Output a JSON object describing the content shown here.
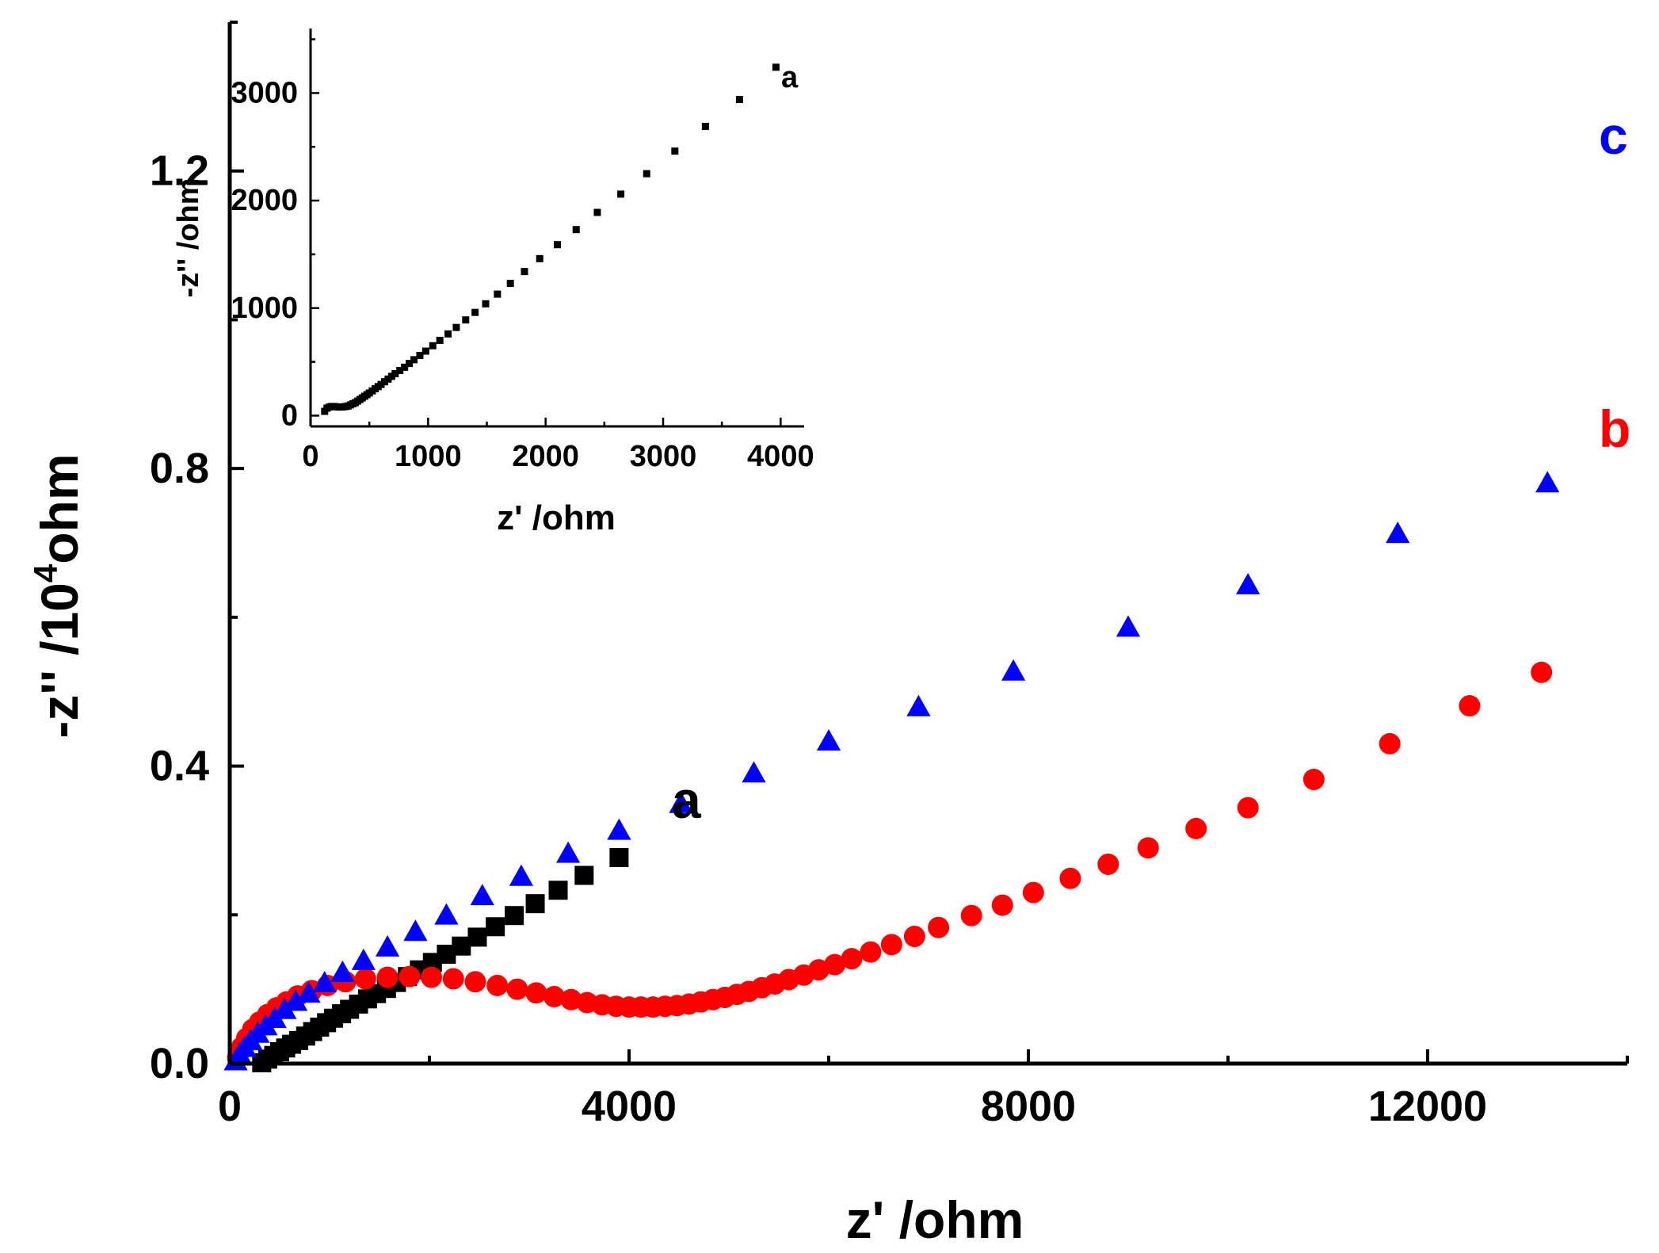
{
  "chart_data": [
    {
      "type": "scatter",
      "name": "main",
      "xlabel": "z' /ohm",
      "ylabel": "-z'' /10^4ohm",
      "ylabel_parts": {
        "prefix": "-z'' /10",
        "sup": "4",
        "suffix": "ohm"
      },
      "xlim": [
        0,
        14000
      ],
      "ylim": [
        0,
        1.4
      ],
      "xticks": [
        0,
        4000,
        8000,
        12000
      ],
      "yticks": [
        0.0,
        0.4,
        0.8,
        1.2
      ],
      "xtick_labels": [
        "0",
        "4000",
        "8000",
        "12000"
      ],
      "ytick_labels": [
        "0.0",
        "0.4",
        "0.8",
        "1.2"
      ],
      "series": [
        {
          "name": "a",
          "marker": "square",
          "color": "#000000",
          "x": [
            320,
            380,
            440,
            500,
            560,
            620,
            690,
            760,
            830,
            900,
            970,
            1040,
            1120,
            1200,
            1290,
            1380,
            1470,
            1570,
            1670,
            1780,
            1900,
            2030,
            2170,
            2320,
            2480,
            2660,
            2850,
            3060,
            3290,
            3550,
            3900
          ],
          "y": [
            0.001,
            0.006,
            0.011,
            0.016,
            0.021,
            0.026,
            0.031,
            0.037,
            0.043,
            0.049,
            0.055,
            0.061,
            0.067,
            0.073,
            0.08,
            0.087,
            0.094,
            0.101,
            0.109,
            0.117,
            0.126,
            0.136,
            0.147,
            0.158,
            0.17,
            0.184,
            0.199,
            0.215,
            0.233,
            0.253,
            0.277
          ]
        },
        {
          "name": "b",
          "marker": "circle",
          "color": "#ff0000",
          "x": [
            80,
            120,
            170,
            230,
            300,
            380,
            470,
            570,
            680,
            820,
            980,
            1160,
            1360,
            1580,
            1800,
            2020,
            2240,
            2460,
            2680,
            2880,
            3070,
            3250,
            3420,
            3580,
            3730,
            3870,
            4000,
            4120,
            4240,
            4360,
            4480,
            4600,
            4720,
            4840,
            4960,
            5080,
            5200,
            5330,
            5460,
            5600,
            5750,
            5900,
            6060,
            6230,
            6420,
            6630,
            6860,
            7100,
            7430,
            7740,
            8050,
            8420,
            8800,
            9200,
            9680,
            10200,
            10860,
            11620,
            12420,
            13140
          ],
          "y": [
            0.008,
            0.022,
            0.034,
            0.046,
            0.056,
            0.066,
            0.075,
            0.083,
            0.091,
            0.098,
            0.105,
            0.11,
            0.114,
            0.116,
            0.117,
            0.116,
            0.114,
            0.11,
            0.105,
            0.1,
            0.095,
            0.09,
            0.086,
            0.082,
            0.079,
            0.077,
            0.076,
            0.076,
            0.076,
            0.077,
            0.078,
            0.08,
            0.083,
            0.086,
            0.089,
            0.093,
            0.097,
            0.102,
            0.107,
            0.113,
            0.119,
            0.126,
            0.133,
            0.141,
            0.15,
            0.16,
            0.171,
            0.183,
            0.199,
            0.213,
            0.23,
            0.249,
            0.268,
            0.29,
            0.316,
            0.344,
            0.382,
            0.43,
            0.481,
            0.526
          ]
        },
        {
          "name": "c",
          "marker": "triangle",
          "color": "#0000ff",
          "x": [
            60,
            100,
            150,
            210,
            280,
            360,
            450,
            550,
            660,
            790,
            950,
            1130,
            1340,
            1580,
            1860,
            2170,
            2530,
            2920,
            3390,
            3900,
            4520,
            5250,
            6000,
            6900,
            7850,
            9000,
            10200,
            11700,
            13200
          ],
          "y": [
            0.003,
            0.012,
            0.021,
            0.03,
            0.04,
            0.05,
            0.06,
            0.072,
            0.083,
            0.094,
            0.108,
            0.122,
            0.138,
            0.156,
            0.177,
            0.199,
            0.225,
            0.251,
            0.282,
            0.313,
            0.349,
            0.39,
            0.433,
            0.479,
            0.527,
            0.586,
            0.643,
            0.712,
            0.78
          ]
        }
      ],
      "annotations": [
        {
          "text": "a",
          "color": "#000000"
        },
        {
          "text": "b",
          "color": "#ff0000"
        },
        {
          "text": "c",
          "color": "#0000ff"
        }
      ]
    },
    {
      "type": "scatter",
      "name": "inset",
      "xlabel": "z' /ohm",
      "ylabel": "-z'' /ohm",
      "xlim": [
        0,
        4200
      ],
      "ylim": [
        -100,
        3600
      ],
      "xticks": [
        0,
        1000,
        2000,
        3000,
        4000
      ],
      "yticks": [
        0,
        1000,
        2000,
        3000
      ],
      "xtick_labels": [
        "0",
        "1000",
        "2000",
        "3000",
        "4000"
      ],
      "ytick_labels": [
        "0",
        "1000",
        "2000",
        "3000"
      ],
      "series": [
        {
          "name": "a",
          "marker": "square",
          "color": "#000000",
          "x": [
            120,
            140,
            160,
            180,
            200,
            220,
            240,
            260,
            280,
            300,
            320,
            340,
            360,
            380,
            400,
            420,
            440,
            460,
            480,
            500,
            525,
            550,
            575,
            600,
            630,
            660,
            690,
            720,
            760,
            800,
            840,
            880,
            930,
            980,
            1040,
            1100,
            1170,
            1240,
            1320,
            1400,
            1490,
            1590,
            1700,
            1820,
            1950,
            2100,
            2260,
            2440,
            2640,
            2860,
            3100,
            3360,
            3650,
            3960
          ],
          "y": [
            40,
            70,
            80,
            85,
            85,
            82,
            80,
            80,
            82,
            85,
            90,
            100,
            110,
            120,
            135,
            150,
            165,
            180,
            195,
            210,
            230,
            250,
            270,
            290,
            315,
            340,
            365,
            390,
            420,
            450,
            485,
            520,
            560,
            600,
            650,
            700,
            760,
            820,
            890,
            960,
            1040,
            1130,
            1230,
            1340,
            1460,
            1590,
            1730,
            1890,
            2060,
            2250,
            2460,
            2690,
            2940,
            3240
          ]
        }
      ],
      "annotations": [
        {
          "text": "a",
          "color": "#000000"
        }
      ]
    }
  ]
}
